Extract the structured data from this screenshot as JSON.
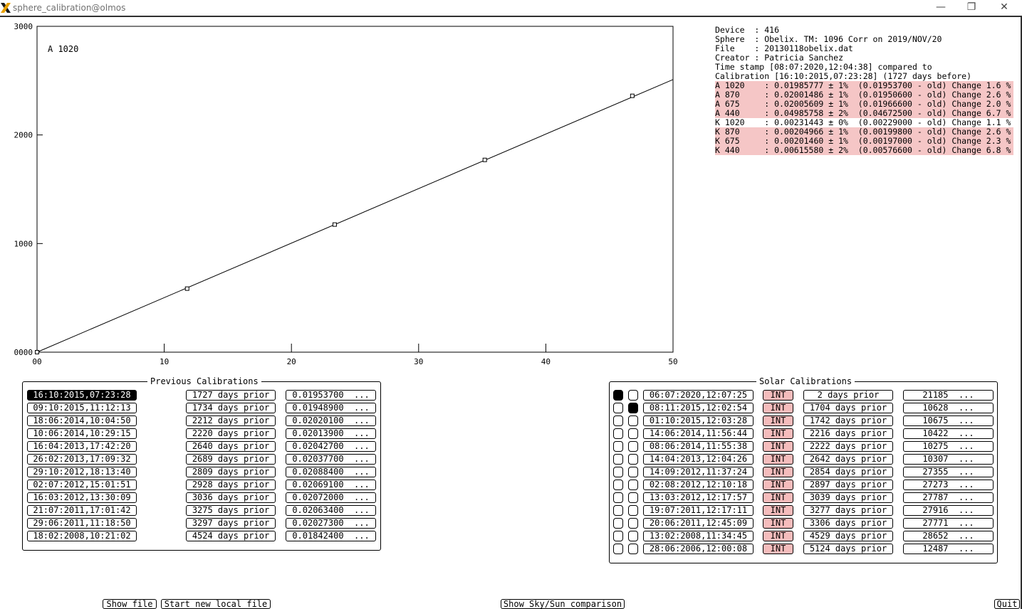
{
  "window": {
    "title": "sphere_calibration@olmos",
    "icon": "x-app-icon",
    "minimize_label": "—",
    "restore_label": "❐",
    "close_label": "✕"
  },
  "chart_data": {
    "type": "scatter",
    "title": "",
    "annotation": "A 1020",
    "xlabel": "",
    "ylabel": "",
    "xlim": [
      0,
      50
    ],
    "ylim": [
      0,
      3000
    ],
    "x_ticks": [
      "00",
      "10",
      "20",
      "30",
      "40",
      "50"
    ],
    "y_ticks": [
      "0000",
      "1000",
      "2000",
      "3000"
    ],
    "points": [
      {
        "x": 0,
        "y": 0
      },
      {
        "x": 11.8,
        "y": 585
      },
      {
        "x": 23.4,
        "y": 1175
      },
      {
        "x": 35.2,
        "y": 1770
      },
      {
        "x": 46.8,
        "y": 2360
      }
    ],
    "fit_line": {
      "x": [
        0,
        50
      ],
      "y": [
        0,
        2510
      ]
    },
    "grid": false
  },
  "info": {
    "lines": [
      "Device  : 416",
      "Sphere  : Obelix. TM: 1096 Corr on 2019/NOV/20",
      "File    : 20130118obelix.dat",
      "Creator : Patricia Sanchez",
      "Time stamp [08:07:2020,12:04:38] compared to",
      "Calibration [16:10:2015,07:23:28] (1727 days before)"
    ],
    "coefficients": [
      {
        "text": "A 1020    : 0.01985777 ± 1%  (0.01953700 - old) Change 1.6 %",
        "highlight": true
      },
      {
        "text": "A 870     : 0.02001486 ± 1%  (0.01950600 - old) Change 2.6 %",
        "highlight": true
      },
      {
        "text": "A 675     : 0.02005609 ± 1%  (0.01966600 - old) Change 2.0 %",
        "highlight": true
      },
      {
        "text": "A 440     : 0.04985758 ± 2%  (0.04672500 - old) Change 6.7 %",
        "highlight": true
      },
      {
        "text": "K 1020    : 0.00231443 ± 0%  (0.00229000 - old) Change 1.1 %",
        "highlight": false
      },
      {
        "text": "K 870     : 0.00204966 ± 1%  (0.00199800 - old) Change 2.6 %",
        "highlight": true
      },
      {
        "text": "K 675     : 0.00201460 ± 1%  (0.00197000 - old) Change 2.3 %",
        "highlight": true
      },
      {
        "text": "K 440     : 0.00615580 ± 2%  (0.00576600 - old) Change 6.8 %",
        "highlight": true
      }
    ],
    "highlight_color": "#f5c6c6"
  },
  "previous": {
    "title": "Previous Calibrations",
    "rows": [
      {
        "date": "16:10:2015,07:23:28",
        "prior": "1727 days prior",
        "value": "0.01953700  ...",
        "selected": true
      },
      {
        "date": "09:10:2015,11:12:13",
        "prior": "1734 days prior",
        "value": "0.01948900  ...",
        "selected": false
      },
      {
        "date": "18:06:2014,10:04:50",
        "prior": "2212 days prior",
        "value": "0.02020100  ...",
        "selected": false
      },
      {
        "date": "10:06:2014,10:29:15",
        "prior": "2220 days prior",
        "value": "0.02013900  ...",
        "selected": false
      },
      {
        "date": "16:04:2013,17:42:20",
        "prior": "2640 days prior",
        "value": "0.02042700  ...",
        "selected": false
      },
      {
        "date": "26:02:2013,17:09:32",
        "prior": "2689 days prior",
        "value": "0.02037700  ...",
        "selected": false
      },
      {
        "date": "29:10:2012,18:13:40",
        "prior": "2809 days prior",
        "value": "0.02088400  ...",
        "selected": false
      },
      {
        "date": "02:07:2012,15:01:51",
        "prior": "2928 days prior",
        "value": "0.02069100  ...",
        "selected": false
      },
      {
        "date": "16:03:2012,13:30:09",
        "prior": "3036 days prior",
        "value": "0.02072000  ...",
        "selected": false
      },
      {
        "date": "21:07:2011,17:01:42",
        "prior": "3275 days prior",
        "value": "0.02063400  ...",
        "selected": false
      },
      {
        "date": "29:06:2011,11:18:50",
        "prior": "3297 days prior",
        "value": "0.02027300  ...",
        "selected": false
      },
      {
        "date": "18:02:2008,10:21:02",
        "prior": "4524 days prior",
        "value": "0.01842400  ...",
        "selected": false
      }
    ]
  },
  "solar": {
    "title": "Solar Calibrations",
    "rows": [
      {
        "r1": true,
        "r2": false,
        "date": "06:07:2020,12:07:25",
        "tag": "INT",
        "prior": "2 days prior",
        "value": "21185  ..."
      },
      {
        "r1": false,
        "r2": true,
        "date": "08:11:2015,12:02:54",
        "tag": "INT",
        "prior": "1704 days prior",
        "value": "10628  ..."
      },
      {
        "r1": false,
        "r2": false,
        "date": "01:10:2015,12:03:28",
        "tag": "INT",
        "prior": "1742 days prior",
        "value": "10675  ..."
      },
      {
        "r1": false,
        "r2": false,
        "date": "14:06:2014,11:56:44",
        "tag": "INT",
        "prior": "2216 days prior",
        "value": "10422  ..."
      },
      {
        "r1": false,
        "r2": false,
        "date": "08:06:2014,11:55:38",
        "tag": "INT",
        "prior": "2222 days prior",
        "value": "10275  ..."
      },
      {
        "r1": false,
        "r2": false,
        "date": "14:04:2013,12:04:26",
        "tag": "INT",
        "prior": "2642 days prior",
        "value": "10307  ..."
      },
      {
        "r1": false,
        "r2": false,
        "date": "14:09:2012,11:37:24",
        "tag": "INT",
        "prior": "2854 days prior",
        "value": "27355  ..."
      },
      {
        "r1": false,
        "r2": false,
        "date": "02:08:2012,12:10:18",
        "tag": "INT",
        "prior": "2897 days prior",
        "value": "27273  ..."
      },
      {
        "r1": false,
        "r2": false,
        "date": "13:03:2012,12:17:57",
        "tag": "INT",
        "prior": "3039 days prior",
        "value": "27787  ..."
      },
      {
        "r1": false,
        "r2": false,
        "date": "19:07:2011,12:17:11",
        "tag": "INT",
        "prior": "3277 days prior",
        "value": "27916  ..."
      },
      {
        "r1": false,
        "r2": false,
        "date": "20:06:2011,12:45:09",
        "tag": "INT",
        "prior": "3306 days prior",
        "value": "27771  ..."
      },
      {
        "r1": false,
        "r2": false,
        "date": "13:02:2008,11:34:45",
        "tag": "INT",
        "prior": "4529 days prior",
        "value": "28652  ..."
      },
      {
        "r1": false,
        "r2": false,
        "date": "28:06:2006,12:00:08",
        "tag": "INT",
        "prior": "5124 days prior",
        "value": "12487  ..."
      }
    ],
    "tag_color": "#f5bcbc"
  },
  "buttons": {
    "show_file": "Show file",
    "start_new": "Start new local file",
    "show_comparison": "Show Sky/Sun comparison",
    "quit": "Quit"
  }
}
